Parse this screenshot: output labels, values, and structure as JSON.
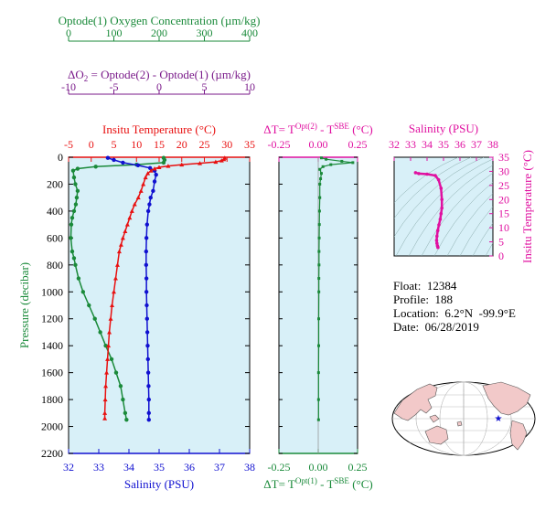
{
  "float_info": {
    "float_label": "Float:",
    "float_value": "12384",
    "profile_label": "Profile:",
    "profile_value": "188",
    "location_label": "Location:",
    "location_value": "6.2°N  -99.9°E",
    "date_label": "Date:",
    "date_value": "06/28/2019"
  },
  "colors": {
    "oxygen": "#1a8a3a",
    "delta_o2": "#7a1a8a",
    "temperature": "#e81010",
    "salinity": "#1010d0",
    "panel_bg": "#d8f0f8",
    "magenta": "#e010a0",
    "map_land": "#f2c9c9"
  },
  "chart_data": [
    {
      "type": "scatter",
      "title": "",
      "ylabel": "Pressure (decibar)",
      "ylim": [
        2200,
        0
      ],
      "yticks": [
        "0",
        "200",
        "400",
        "600",
        "800",
        "1000",
        "1200",
        "1400",
        "1600",
        "1800",
        "2000",
        "2200"
      ],
      "axes": {
        "oxygen": {
          "label": "Optode(1) Oxygen Concentration (µm/kg)",
          "range": [
            0,
            400
          ],
          "ticks": [
            "0",
            "100",
            "200",
            "300",
            "400"
          ]
        },
        "delta_o2": {
          "label_prefix": "ΔO",
          "label_sub": "2",
          "label_rest": " = Optode(2) - Optode(1)   (µm/kg)",
          "range": [
            -10,
            10
          ],
          "ticks": [
            "-10",
            "-5",
            "0",
            "5",
            "10"
          ]
        },
        "temperature": {
          "label": "Insitu Temperature (°C)",
          "range": [
            -5,
            35
          ],
          "ticks": [
            "-5",
            "0",
            "5",
            "10",
            "15",
            "20",
            "25",
            "30",
            "35"
          ]
        },
        "salinity": {
          "label": "Salinity (PSU)",
          "range": [
            32,
            38
          ],
          "ticks": [
            "32",
            "33",
            "34",
            "35",
            "36",
            "37",
            "38"
          ]
        }
      },
      "series": [
        {
          "name": "temperature",
          "points": [
            [
              29.5,
              5
            ],
            [
              29.3,
              15
            ],
            [
              28.8,
              25
            ],
            [
              27.5,
              35
            ],
            [
              24,
              45
            ],
            [
              20,
              55
            ],
            [
              17,
              65
            ],
            [
              15,
              75
            ],
            [
              14,
              85
            ],
            [
              13.2,
              100
            ],
            [
              12.5,
              120
            ],
            [
              12,
              150
            ],
            [
              11.5,
              200
            ],
            [
              11,
              250
            ],
            [
              10.4,
              300
            ],
            [
              9.6,
              350
            ],
            [
              9,
              400
            ],
            [
              8.5,
              450
            ],
            [
              8,
              500
            ],
            [
              7.5,
              550
            ],
            [
              7,
              600
            ],
            [
              6.6,
              650
            ],
            [
              6.2,
              700
            ],
            [
              5.8,
              800
            ],
            [
              5.4,
              900
            ],
            [
              5,
              1000
            ],
            [
              4.6,
              1100
            ],
            [
              4.3,
              1200
            ],
            [
              4,
              1300
            ],
            [
              3.8,
              1400
            ],
            [
              3.6,
              1500
            ],
            [
              3.4,
              1600
            ],
            [
              3.2,
              1700
            ],
            [
              3.1,
              1800
            ],
            [
              3,
              1900
            ],
            [
              3,
              1940
            ]
          ]
        },
        {
          "name": "salinity",
          "points": [
            [
              33.3,
              5
            ],
            [
              33.5,
              20
            ],
            [
              33.8,
              40
            ],
            [
              34.3,
              60
            ],
            [
              34.7,
              80
            ],
            [
              34.85,
              100
            ],
            [
              34.9,
              130
            ],
            [
              34.85,
              180
            ],
            [
              34.8,
              250
            ],
            [
              34.72,
              300
            ],
            [
              34.68,
              350
            ],
            [
              34.64,
              400
            ],
            [
              34.6,
              500
            ],
            [
              34.58,
              600
            ],
            [
              34.57,
              700
            ],
            [
              34.57,
              800
            ],
            [
              34.58,
              900
            ],
            [
              34.58,
              1000
            ],
            [
              34.59,
              1100
            ],
            [
              34.6,
              1200
            ],
            [
              34.61,
              1300
            ],
            [
              34.62,
              1400
            ],
            [
              34.63,
              1500
            ],
            [
              34.64,
              1600
            ],
            [
              34.65,
              1700
            ],
            [
              34.66,
              1800
            ],
            [
              34.66,
              1900
            ],
            [
              34.66,
              1950
            ]
          ]
        },
        {
          "name": "oxygen",
          "points": [
            [
              210,
              5
            ],
            [
              212,
              20
            ],
            [
              210,
              40
            ],
            [
              150,
              55
            ],
            [
              60,
              70
            ],
            [
              20,
              85
            ],
            [
              10,
              100
            ],
            [
              12,
              150
            ],
            [
              15,
              200
            ],
            [
              20,
              250
            ],
            [
              18,
              300
            ],
            [
              16,
              350
            ],
            [
              12,
              400
            ],
            [
              8,
              450
            ],
            [
              6,
              500
            ],
            [
              5,
              600
            ],
            [
              8,
              700
            ],
            [
              12,
              750
            ],
            [
              15,
              800
            ],
            [
              22,
              900
            ],
            [
              32,
              1000
            ],
            [
              45,
              1100
            ],
            [
              58,
              1200
            ],
            [
              70,
              1300
            ],
            [
              82,
              1400
            ],
            [
              95,
              1500
            ],
            [
              105,
              1600
            ],
            [
              115,
              1700
            ],
            [
              120,
              1800
            ],
            [
              125,
              1900
            ],
            [
              128,
              1950
            ]
          ]
        }
      ]
    },
    {
      "type": "scatter",
      "axes": {
        "top": {
          "label_prefix": "ΔT= T",
          "label_sup1": "Opt(2)",
          "label_mid": " - T",
          "label_sup2": "SBE",
          "label_unit": " (°C)",
          "range": [
            -0.25,
            0.25
          ],
          "ticks": [
            "-0.25",
            "0.00",
            "0.25"
          ]
        },
        "bottom": {
          "label_prefix": "ΔT= T",
          "label_sup1": "Opt(1)",
          "label_mid": " - T",
          "label_sup2": "SBE",
          "label_unit": " (°C)",
          "range": [
            -0.25,
            0.25
          ],
          "ticks": [
            "-0.25",
            "0.00",
            "0.25"
          ]
        }
      },
      "ylim": [
        2200,
        0
      ],
      "series": [
        {
          "name": "delta_t",
          "points": [
            [
              0.02,
              5
            ],
            [
              0.05,
              15
            ],
            [
              0.15,
              30
            ],
            [
              0.22,
              40
            ],
            [
              0.08,
              55
            ],
            [
              0.03,
              70
            ],
            [
              0.01,
              90
            ],
            [
              0.02,
              120
            ],
            [
              0.015,
              160
            ],
            [
              0.01,
              200
            ],
            [
              0.01,
              300
            ],
            [
              0.008,
              400
            ],
            [
              0.007,
              500
            ],
            [
              0.006,
              600
            ],
            [
              0.005,
              700
            ],
            [
              0.005,
              800
            ],
            [
              0.004,
              900
            ],
            [
              0.004,
              1000
            ],
            [
              0.003,
              1200
            ],
            [
              0.003,
              1400
            ],
            [
              0.002,
              1600
            ],
            [
              0.002,
              1800
            ],
            [
              0.002,
              1950
            ]
          ]
        }
      ]
    },
    {
      "type": "scatter",
      "xlabel": "Salinity (PSU)",
      "ylabel": "Insitu Temperature (°C)",
      "xlim": [
        32,
        38
      ],
      "ylim": [
        0,
        35
      ],
      "xticks": [
        "32",
        "33",
        "34",
        "35",
        "36",
        "37",
        "38"
      ],
      "yticks": [
        "0",
        "5",
        "10",
        "15",
        "20",
        "25",
        "30",
        "35"
      ],
      "series": [
        {
          "name": "ts",
          "points": [
            [
              33.3,
              29.5
            ],
            [
              33.5,
              29.2
            ],
            [
              34,
              29
            ],
            [
              34.5,
              28.5
            ],
            [
              34.7,
              27
            ],
            [
              34.85,
              24
            ],
            [
              34.9,
              20
            ],
            [
              34.9,
              17
            ],
            [
              34.85,
              15
            ],
            [
              34.8,
              13
            ],
            [
              34.72,
              11
            ],
            [
              34.65,
              9
            ],
            [
              34.6,
              7
            ],
            [
              34.58,
              5.5
            ],
            [
              34.6,
              4.5
            ],
            [
              34.63,
              3.6
            ],
            [
              34.66,
              3
            ]
          ]
        }
      ]
    }
  ]
}
